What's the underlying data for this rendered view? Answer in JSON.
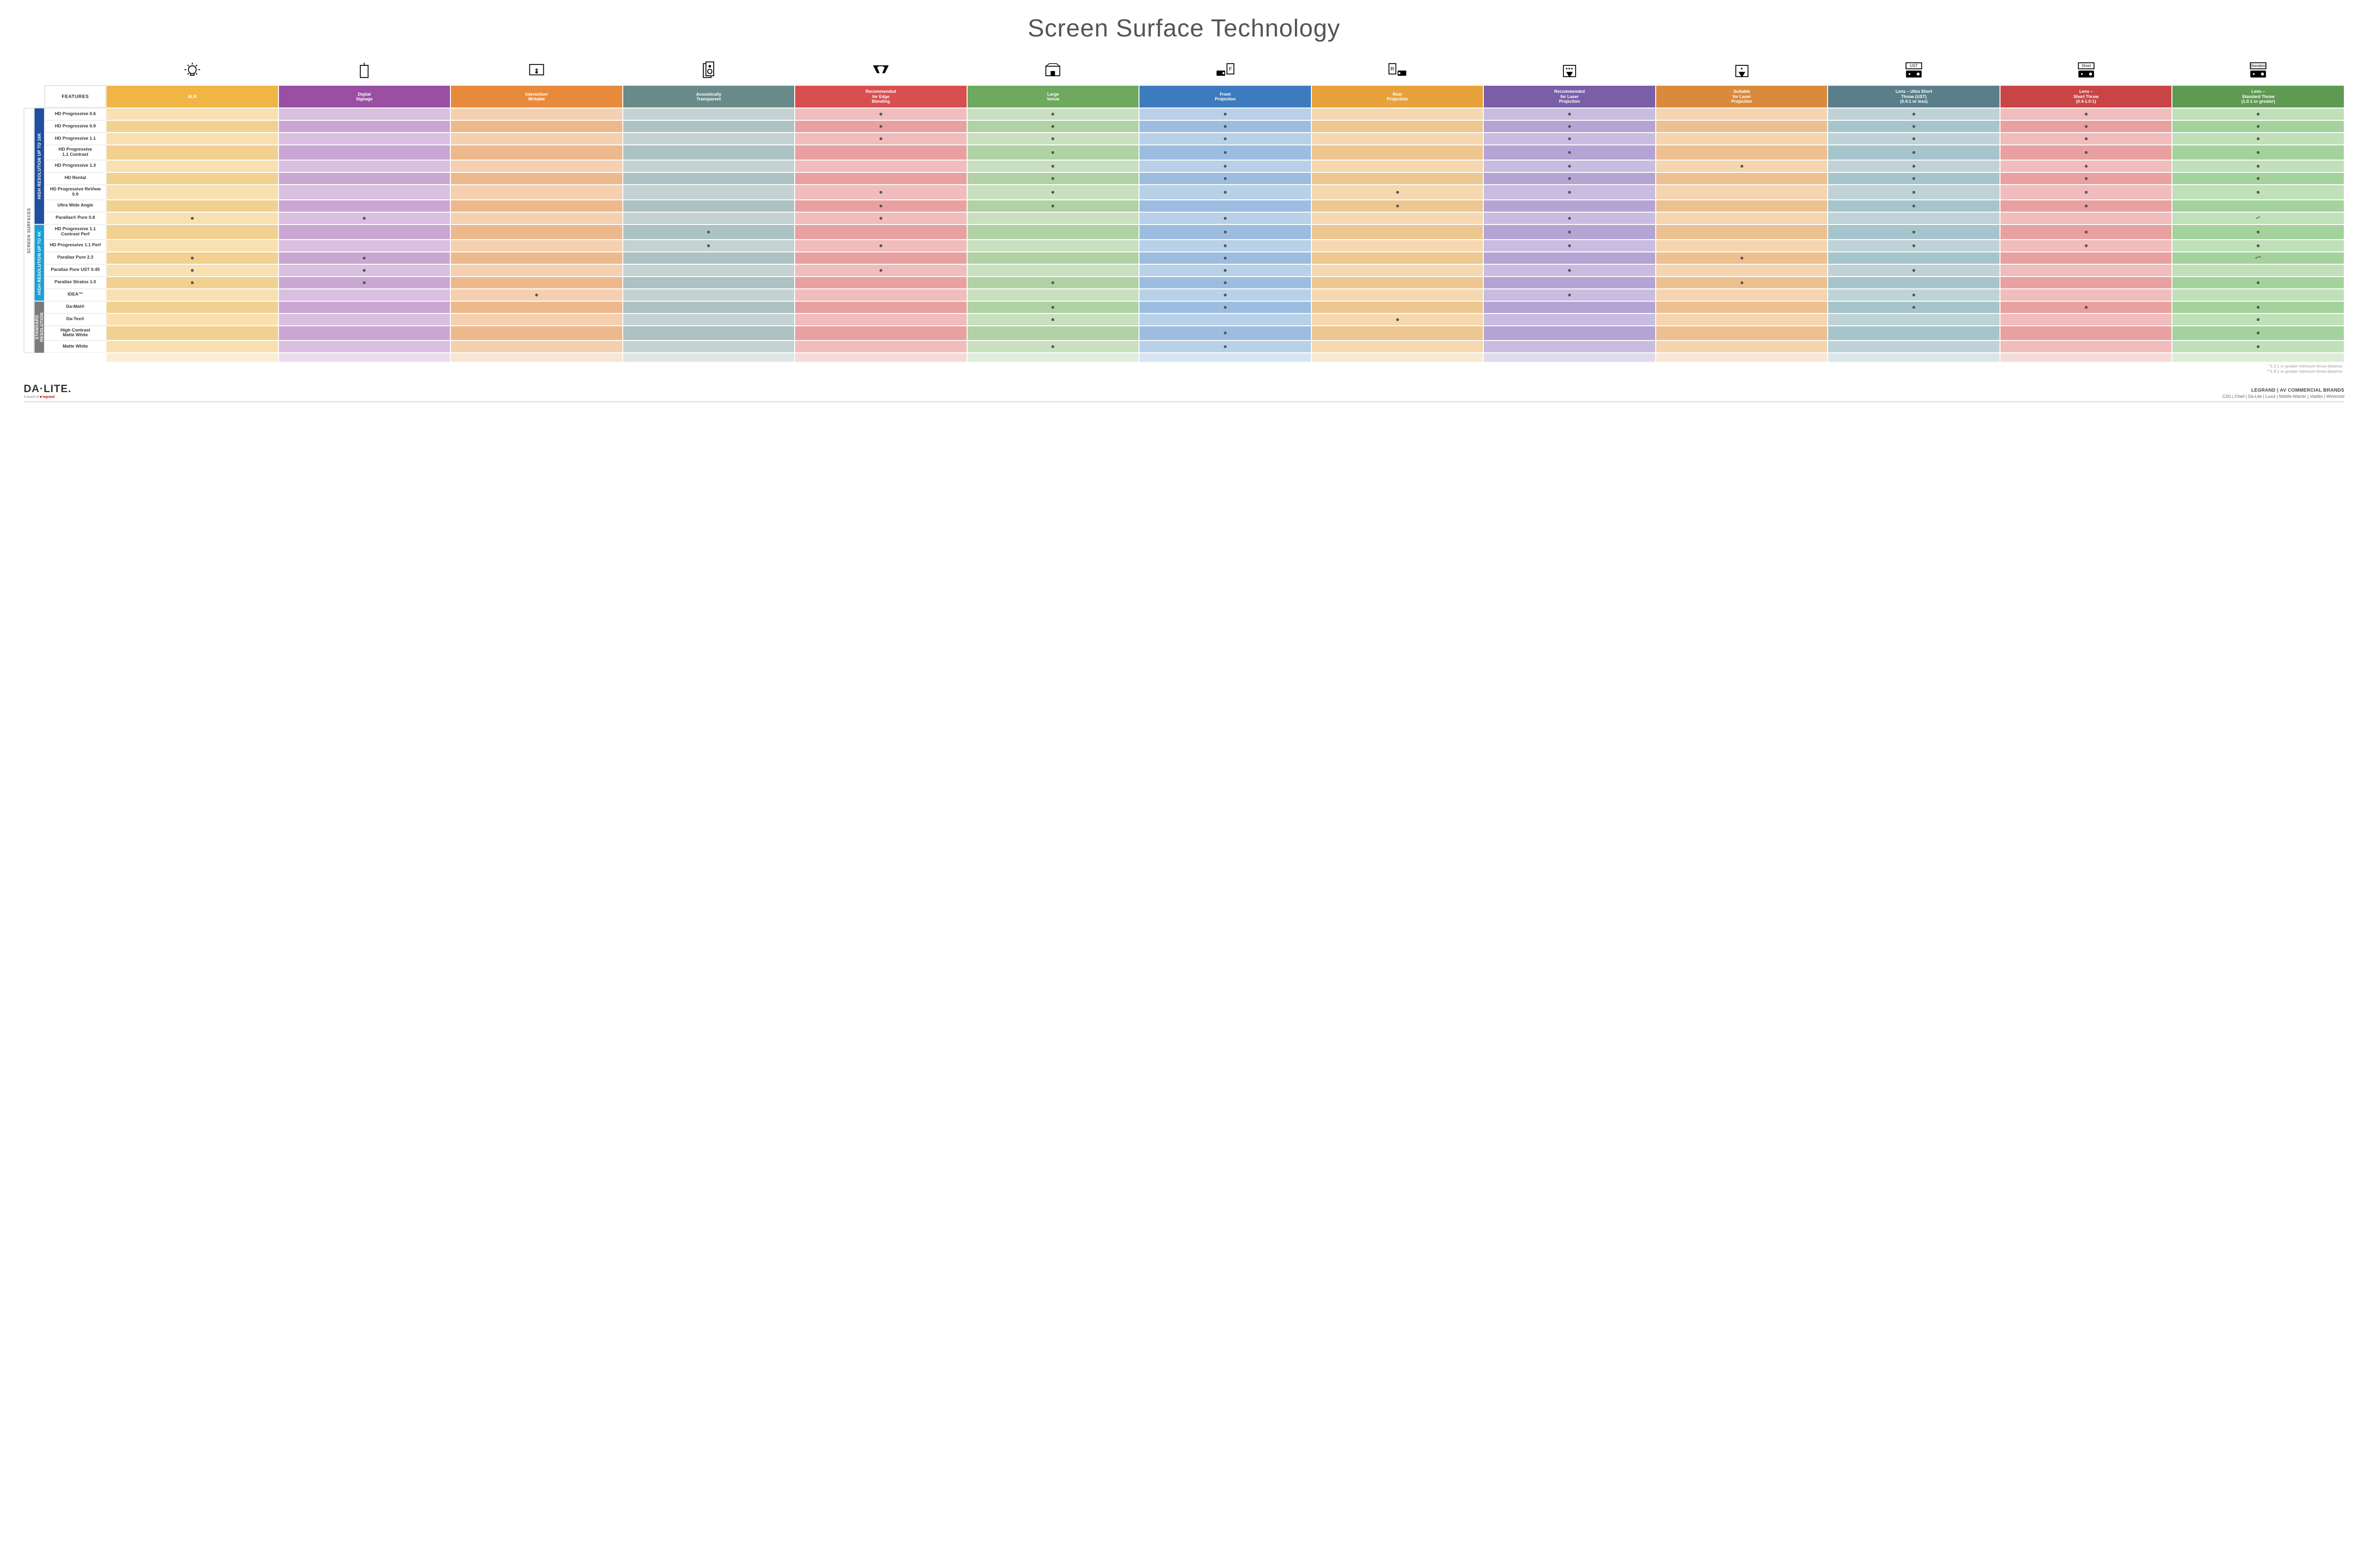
{
  "title": "Screen Surface Technology",
  "colors": {
    "col_bg": [
      "#f0b545",
      "#9a4fa3",
      "#e88a3c",
      "#6a8a8a",
      "#d94e4e",
      "#6fa85f",
      "#3d7bbf",
      "#e8a23c",
      "#7a5fa8",
      "#d98a3c",
      "#5a7f8a",
      "#c94545",
      "#5f9a52"
    ],
    "col_tint_light": [
      "#f8e0b0",
      "#d9bfe0",
      "#f5d0b0",
      "#c4d2d2",
      "#f0bcbc",
      "#c8e0bf",
      "#b8d0e8",
      "#f5d8b0",
      "#c8bde0",
      "#f5d4b0",
      "#bfd2d8",
      "#f0bcbc",
      "#bfe0b8"
    ],
    "col_tint_dark": [
      "#f2d090",
      "#caa6d2",
      "#edb98c",
      "#adc2c2",
      "#e8a0a0",
      "#b0d2a4",
      "#9cbde0",
      "#edc690",
      "#b3a4d4",
      "#edc090",
      "#a6c4cc",
      "#e8a0a0",
      "#a4d29c"
    ],
    "side_16k": "#1e4fa0",
    "side_4k": "#1aa0d8",
    "side_std": "#7a7a7a"
  },
  "columns": [
    {
      "label": "ALR",
      "icon": "bulb"
    },
    {
      "label": "Digital\nSignage",
      "icon": "signage"
    },
    {
      "label": "Interactive/\nWritable",
      "icon": "touch"
    },
    {
      "label": "Acoustically\nTransparent",
      "icon": "speaker"
    },
    {
      "label": "Recommended\nfor Edge\nBlending",
      "icon": "blend"
    },
    {
      "label": "Large\nVenue",
      "icon": "venue"
    },
    {
      "label": "Front\nProjection",
      "icon": "front"
    },
    {
      "label": "Rear\nProjection",
      "icon": "rear"
    },
    {
      "label": "Recommended\nfor Laser\nProjection",
      "icon": "laser3"
    },
    {
      "label": "Suitable\nfor Laser\nProjection",
      "icon": "laser1"
    },
    {
      "label": "Lens – Ultra Short\nThrow (UST)\n(0.4:1 or less)",
      "icon": "ust"
    },
    {
      "label": "Lens –\nShort Throw\n(0.4-1.0:1)",
      "icon": "short"
    },
    {
      "label": "Lens –\nStandard Throw\n(1.0:1 or greater)",
      "icon": "standard"
    }
  ],
  "features_label": "FEATURES",
  "side_outer_label": "SCREEN SURFACES",
  "sections": [
    {
      "label": "HIGH RESOLUTION UP TO 16K",
      "color_key": "side_16k",
      "rows": [
        {
          "label": "HD Progressive 0.6",
          "dots": [
            0,
            0,
            0,
            0,
            1,
            1,
            1,
            0,
            1,
            0,
            1,
            1,
            1
          ]
        },
        {
          "label": "HD Progressive 0.9",
          "dots": [
            0,
            0,
            0,
            0,
            1,
            1,
            1,
            0,
            1,
            0,
            1,
            1,
            1
          ]
        },
        {
          "label": "HD Progressive 1.1",
          "dots": [
            0,
            0,
            0,
            0,
            1,
            1,
            1,
            0,
            1,
            0,
            1,
            1,
            1
          ]
        },
        {
          "label": "HD Progressive\n1.1 Contrast",
          "dots": [
            0,
            0,
            0,
            0,
            0,
            1,
            1,
            0,
            1,
            0,
            1,
            1,
            1
          ]
        },
        {
          "label": "HD Progressive 1.3",
          "dots": [
            0,
            0,
            0,
            0,
            0,
            1,
            1,
            0,
            1,
            1,
            1,
            1,
            1
          ]
        },
        {
          "label": "HD Rental",
          "dots": [
            0,
            0,
            0,
            0,
            0,
            1,
            1,
            0,
            1,
            0,
            1,
            1,
            1
          ]
        },
        {
          "label": "HD Progressive ReView 0.9",
          "dots": [
            0,
            0,
            0,
            0,
            1,
            1,
            1,
            1,
            1,
            0,
            1,
            1,
            1
          ]
        },
        {
          "label": "Ultra Wide Angle",
          "dots": [
            0,
            0,
            0,
            0,
            1,
            1,
            0,
            1,
            0,
            0,
            1,
            1,
            0
          ]
        },
        {
          "label": "Parallax® Pure 0.8",
          "dots": [
            1,
            1,
            0,
            0,
            1,
            0,
            1,
            0,
            1,
            0,
            0,
            0,
            "•*"
          ]
        }
      ]
    },
    {
      "label": "HIGH RESOLUTION UP TO 4K",
      "color_key": "side_4k",
      "rows": [
        {
          "label": "HD Progressive 1.1\nContrast Perf",
          "dots": [
            0,
            0,
            0,
            1,
            0,
            0,
            1,
            0,
            1,
            0,
            1,
            1,
            1
          ]
        },
        {
          "label": "HD Progressive 1.1 Perf",
          "dots": [
            0,
            0,
            0,
            1,
            1,
            0,
            1,
            0,
            1,
            0,
            1,
            1,
            1
          ]
        },
        {
          "label": "Parallax Pure 2.3",
          "dots": [
            1,
            1,
            0,
            0,
            0,
            0,
            1,
            0,
            0,
            1,
            0,
            0,
            "•**"
          ]
        },
        {
          "label": "Parallax Pure UST 0.45",
          "dots": [
            1,
            1,
            0,
            0,
            1,
            0,
            1,
            0,
            1,
            0,
            1,
            0,
            0
          ]
        },
        {
          "label": "Parallax Stratos 1.0",
          "dots": [
            1,
            1,
            0,
            0,
            0,
            1,
            1,
            0,
            0,
            1,
            0,
            0,
            1
          ]
        },
        {
          "label": "IDEA™",
          "dots": [
            0,
            0,
            1,
            0,
            0,
            0,
            1,
            0,
            1,
            0,
            1,
            0,
            0
          ]
        }
      ]
    },
    {
      "label": "STANDARD\nRESOLUTION",
      "color_key": "side_std",
      "rows": [
        {
          "label": "Da-Mat®",
          "dots": [
            0,
            0,
            0,
            0,
            0,
            1,
            1,
            0,
            0,
            0,
            1,
            1,
            1
          ]
        },
        {
          "label": "Da-Tex®",
          "dots": [
            0,
            0,
            0,
            0,
            0,
            1,
            0,
            1,
            0,
            0,
            0,
            0,
            1
          ]
        },
        {
          "label": "High Contrast\nMatte White",
          "dots": [
            0,
            0,
            0,
            0,
            0,
            0,
            1,
            0,
            0,
            0,
            0,
            0,
            1
          ]
        },
        {
          "label": "Matte White",
          "dots": [
            0,
            0,
            0,
            0,
            0,
            1,
            1,
            0,
            0,
            0,
            0,
            0,
            1
          ]
        }
      ]
    }
  ],
  "footnotes": [
    "*1.5:1 or greater minimum throw distance",
    "**1.8:1 or greater minimum throw distance"
  ],
  "footer": {
    "logo": "DA·LITE.",
    "logo_sub_prefix": "A brand of ",
    "logo_sub_brand": "legrand",
    "right_top": "LEGRAND | AV COMMERCIAL BRANDS",
    "right_list": "C2G  |  Chief  |  Da-Lite  |  Luxul  |  Middle Atlantic  |  Vaddio  |  Wiremold"
  }
}
